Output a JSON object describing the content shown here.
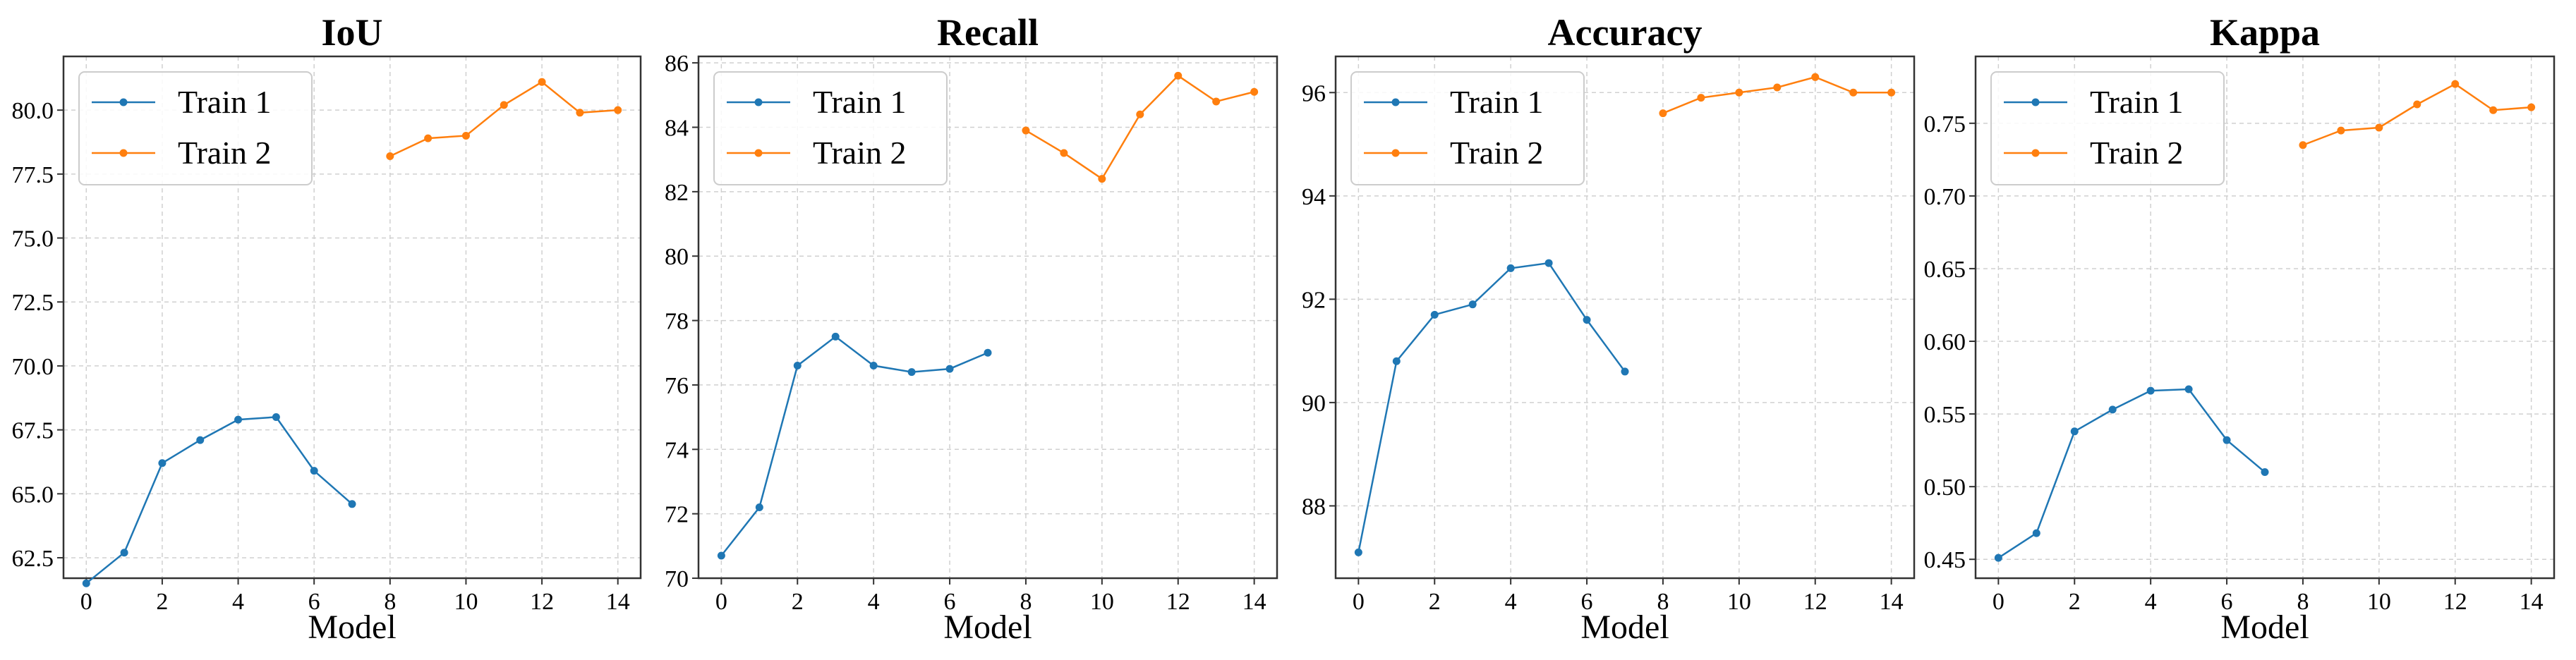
{
  "colors": {
    "train1": "#1f77b4",
    "train2": "#ff7f0e"
  },
  "chart_data": [
    {
      "type": "line",
      "title": "IoU",
      "xlabel": "Model",
      "ylabel": "",
      "xlim": [
        -0.6,
        14.6
      ],
      "ylim": [
        61.7,
        82.1
      ],
      "xticks": [
        0,
        2,
        4,
        6,
        8,
        10,
        12,
        14
      ],
      "yticks": [
        62.5,
        65.0,
        67.5,
        70.0,
        72.5,
        75.0,
        77.5,
        80.0
      ],
      "ytick_labels": [
        "62.5",
        "65.0",
        "67.5",
        "70.0",
        "72.5",
        "75.0",
        "77.5",
        "80.0"
      ],
      "grid": true,
      "legend_position": "top-left",
      "series": [
        {
          "name": "Train 1",
          "x": [
            0,
            1,
            2,
            3,
            4,
            5,
            6,
            7
          ],
          "values": [
            61.5,
            62.7,
            66.2,
            67.1,
            67.9,
            68.0,
            65.9,
            64.6
          ]
        },
        {
          "name": "Train 2",
          "x": [
            8,
            9,
            10,
            11,
            12,
            13,
            14
          ],
          "values": [
            78.2,
            78.9,
            79.0,
            80.2,
            81.1,
            79.9,
            80.0
          ]
        }
      ]
    },
    {
      "type": "line",
      "title": "Recall",
      "xlabel": "Model",
      "ylabel": "",
      "xlim": [
        -0.6,
        14.6
      ],
      "ylim": [
        70.0,
        86.2
      ],
      "xticks": [
        0,
        2,
        4,
        6,
        8,
        10,
        12,
        14
      ],
      "yticks": [
        70,
        72,
        74,
        76,
        78,
        80,
        82,
        84,
        86
      ],
      "ytick_labels": [
        "70",
        "72",
        "74",
        "76",
        "78",
        "80",
        "82",
        "84",
        "86"
      ],
      "grid": true,
      "legend_position": "top-left",
      "series": [
        {
          "name": "Train 1",
          "x": [
            0,
            1,
            2,
            3,
            4,
            5,
            6,
            7
          ],
          "values": [
            70.7,
            72.2,
            76.6,
            77.5,
            76.6,
            76.4,
            76.5,
            77.0
          ]
        },
        {
          "name": "Train 2",
          "x": [
            8,
            9,
            10,
            11,
            12,
            13,
            14
          ],
          "values": [
            83.9,
            83.2,
            82.4,
            84.4,
            85.6,
            84.8,
            85.1
          ]
        }
      ]
    },
    {
      "type": "line",
      "title": "Accuracy",
      "xlabel": "Model",
      "ylabel": "",
      "xlim": [
        -0.6,
        14.6
      ],
      "ylim": [
        86.6,
        96.7
      ],
      "xticks": [
        0,
        2,
        4,
        6,
        8,
        10,
        12,
        14
      ],
      "yticks": [
        88,
        90,
        92,
        94,
        96
      ],
      "ytick_labels": [
        "88",
        "90",
        "92",
        "94",
        "96"
      ],
      "grid": true,
      "legend_position": "top-left",
      "series": [
        {
          "name": "Train 1",
          "x": [
            0,
            1,
            2,
            3,
            4,
            5,
            6,
            7
          ],
          "values": [
            87.1,
            90.8,
            91.7,
            91.9,
            92.6,
            92.7,
            91.6,
            90.6
          ]
        },
        {
          "name": "Train 2",
          "x": [
            8,
            9,
            10,
            11,
            12,
            13,
            14
          ],
          "values": [
            95.6,
            95.9,
            96.0,
            96.1,
            96.3,
            96.0,
            96.0
          ]
        }
      ]
    },
    {
      "type": "line",
      "title": "Kappa",
      "xlabel": "Model",
      "ylabel": "",
      "xlim": [
        -0.6,
        14.6
      ],
      "ylim": [
        0.437,
        0.796
      ],
      "xticks": [
        0,
        2,
        4,
        6,
        8,
        10,
        12,
        14
      ],
      "yticks": [
        0.45,
        0.5,
        0.55,
        0.6,
        0.65,
        0.7,
        0.75
      ],
      "ytick_labels": [
        "0.45",
        "0.50",
        "0.55",
        "0.60",
        "0.65",
        "0.70",
        "0.75"
      ],
      "grid": true,
      "legend_position": "top-left",
      "series": [
        {
          "name": "Train 1",
          "x": [
            0,
            1,
            2,
            3,
            4,
            5,
            6,
            7
          ],
          "values": [
            0.451,
            0.468,
            0.538,
            0.553,
            0.566,
            0.567,
            0.532,
            0.51
          ]
        },
        {
          "name": "Train 2",
          "x": [
            8,
            9,
            10,
            11,
            12,
            13,
            14
          ],
          "values": [
            0.735,
            0.745,
            0.747,
            0.763,
            0.777,
            0.759,
            0.761
          ]
        }
      ]
    }
  ]
}
